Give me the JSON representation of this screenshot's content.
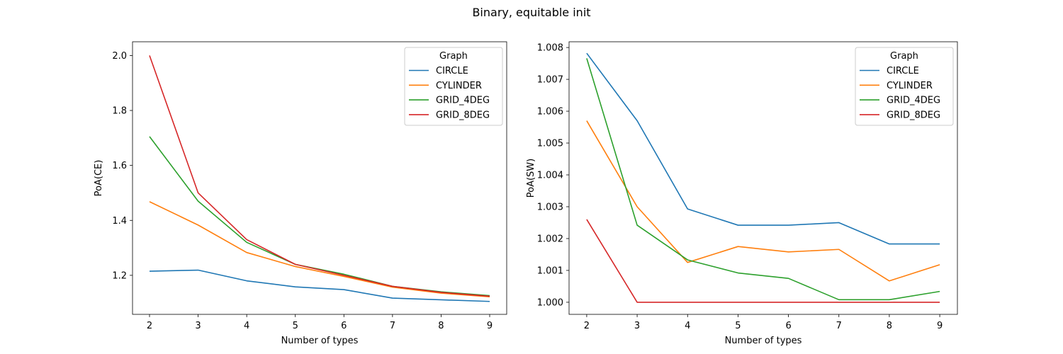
{
  "figure": {
    "suptitle": "Binary, equitable init"
  },
  "chart_data": [
    {
      "type": "line",
      "xlabel": "Number of types",
      "ylabel": "PoA(CE)",
      "x": [
        2,
        3,
        4,
        5,
        6,
        7,
        8,
        9
      ],
      "xlim": [
        1.65,
        9.35
      ],
      "ylim": [
        1.058,
        2.05
      ],
      "yticks": [
        1.2,
        1.4,
        1.6,
        1.8,
        2.0
      ],
      "ytick_labels": [
        "1.2",
        "1.4",
        "1.6",
        "1.8",
        "2.0"
      ],
      "xticks": [
        2,
        3,
        4,
        5,
        6,
        7,
        8,
        9
      ],
      "xtick_labels": [
        "2",
        "3",
        "4",
        "5",
        "6",
        "7",
        "8",
        "9"
      ],
      "grid": false,
      "legend": {
        "title": "Graph",
        "position": "top-right"
      },
      "series": [
        {
          "name": "CIRCLE",
          "color": "#1f77b4",
          "values": [
            1.215,
            1.219,
            1.18,
            1.158,
            1.148,
            1.117,
            1.111,
            1.105
          ]
        },
        {
          "name": "CYLINDER",
          "color": "#ff7f0e",
          "values": [
            1.468,
            1.383,
            1.283,
            1.232,
            1.196,
            1.157,
            1.135,
            1.122
          ]
        },
        {
          "name": "GRID_4DEG",
          "color": "#2ca02c",
          "values": [
            1.705,
            1.47,
            1.32,
            1.24,
            1.204,
            1.16,
            1.14,
            1.126
          ]
        },
        {
          "name": "GRID_8DEG",
          "color": "#d62728",
          "values": [
            2.0,
            1.5,
            1.33,
            1.24,
            1.2,
            1.16,
            1.138,
            1.124
          ]
        }
      ]
    },
    {
      "type": "line",
      "xlabel": "Number of types",
      "ylabel": "PoA(SW)",
      "x": [
        2,
        3,
        4,
        5,
        6,
        7,
        8,
        9
      ],
      "xlim": [
        1.65,
        9.35
      ],
      "ylim": [
        0.99962,
        1.00818
      ],
      "yticks": [
        1.0,
        1.001,
        1.002,
        1.003,
        1.004,
        1.005,
        1.006,
        1.007,
        1.008
      ],
      "ytick_labels": [
        "1.000",
        "1.001",
        "1.002",
        "1.003",
        "1.004",
        "1.005",
        "1.006",
        "1.007",
        "1.008"
      ],
      "xticks": [
        2,
        3,
        4,
        5,
        6,
        7,
        8,
        9
      ],
      "xtick_labels": [
        "2",
        "3",
        "4",
        "5",
        "6",
        "7",
        "8",
        "9"
      ],
      "grid": false,
      "legend": {
        "title": "Graph",
        "position": "top-right"
      },
      "series": [
        {
          "name": "CIRCLE",
          "color": "#1f77b4",
          "values": [
            1.00782,
            1.0057,
            1.00293,
            1.00242,
            1.00242,
            1.0025,
            1.00183,
            1.00183
          ]
        },
        {
          "name": "CYLINDER",
          "color": "#ff7f0e",
          "values": [
            1.0057,
            1.003,
            1.00125,
            1.00175,
            1.00158,
            1.00166,
            1.00067,
            1.00118
          ]
        },
        {
          "name": "GRID_4DEG",
          "color": "#2ca02c",
          "values": [
            1.00766,
            1.00242,
            1.00133,
            1.00092,
            1.00075,
            1.00008,
            1.00008,
            1.00034
          ]
        },
        {
          "name": "GRID_8DEG",
          "color": "#d62728",
          "values": [
            1.0026,
            1.0,
            1.0,
            1.0,
            1.0,
            1.0,
            1.0,
            1.0
          ]
        }
      ]
    }
  ]
}
